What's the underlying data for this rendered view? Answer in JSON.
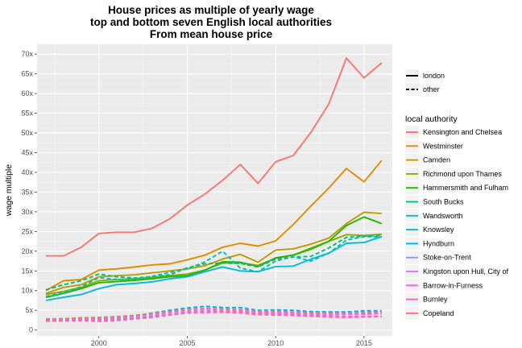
{
  "chart_data": {
    "type": "line",
    "title": [
      "House prices as multiple of yearly wage",
      "top and bottom seven English local authorities",
      "From mean house price"
    ],
    "xlabel": "",
    "ylabel": "wage multiple",
    "xlim": [
      1996.5,
      2016.6
    ],
    "ylim": [
      -1.5,
      72.5
    ],
    "x_ticks": [
      2000,
      2005,
      2010,
      2015
    ],
    "x_tick_labels": [
      "2000",
      "2005",
      "2010",
      "2015"
    ],
    "y_ticks": [
      0,
      5,
      10,
      15,
      20,
      25,
      30,
      35,
      40,
      45,
      50,
      55,
      60,
      65,
      70
    ],
    "y_tick_labels": [
      "0",
      "5x",
      "10x",
      "15x",
      "20x",
      "25x",
      "30x",
      "35x",
      "40x",
      "45x",
      "50x",
      "55x",
      "60x",
      "65x",
      "70x"
    ],
    "grid": true,
    "background": "#ebebeb",
    "legend_placement": "right",
    "linetype_legend": {
      "title": "",
      "items": [
        {
          "label": "london",
          "dash": "solid"
        },
        {
          "label": "other",
          "dash": "dashed"
        }
      ]
    },
    "color_legend_title": "local authority",
    "x": [
      1997,
      1998,
      1999,
      2000,
      2001,
      2002,
      2003,
      2004,
      2005,
      2006,
      2007,
      2008,
      2009,
      2010,
      2011,
      2012,
      2013,
      2014,
      2015,
      2016
    ],
    "series": [
      {
        "name": "Kensington and Chelsea",
        "color": "#F8766D",
        "dash": "solid",
        "values": [
          18.8,
          18.8,
          21.0,
          24.5,
          24.8,
          24.8,
          25.8,
          28.2,
          31.7,
          34.5,
          38.0,
          42.0,
          37.2,
          42.7,
          44.3,
          50.2,
          57.3,
          69.0,
          64.0,
          67.8
        ]
      },
      {
        "name": "Westminster",
        "color": "#E18A00",
        "dash": "solid",
        "values": [
          10.0,
          12.5,
          12.8,
          15.2,
          15.5,
          16.0,
          16.5,
          16.8,
          17.8,
          19.0,
          21.0,
          22.0,
          21.3,
          22.6,
          26.8,
          31.5,
          36.0,
          41.0,
          37.6,
          43.0
        ]
      },
      {
        "name": "Camden",
        "color": "#BE9C00",
        "dash": "solid",
        "values": [
          9.3,
          10.8,
          11.5,
          13.5,
          13.8,
          14.0,
          14.5,
          15.0,
          15.5,
          16.3,
          18.0,
          19.2,
          17.2,
          20.3,
          20.6,
          21.8,
          23.3,
          27.0,
          29.9,
          29.6
        ]
      },
      {
        "name": "Richmond upon Thames",
        "color": "#8CAB00",
        "dash": "solid",
        "values": [
          9.0,
          9.8,
          10.8,
          12.5,
          12.8,
          13.0,
          13.3,
          13.8,
          14.2,
          15.2,
          17.0,
          17.0,
          16.4,
          18.2,
          19.0,
          20.8,
          22.5,
          24.2,
          24.0,
          24.3
        ]
      },
      {
        "name": "Hammersmith and Fulham",
        "color": "#24B700",
        "dash": "solid",
        "values": [
          8.3,
          9.3,
          10.5,
          12.0,
          12.3,
          12.6,
          13.0,
          13.5,
          13.8,
          15.2,
          17.3,
          17.2,
          16.1,
          18.3,
          19.0,
          20.5,
          22.5,
          26.5,
          28.7,
          27.0
        ]
      },
      {
        "name": "South Bucks",
        "color": "#00BE70",
        "dash": "dashed",
        "values": [
          10.2,
          11.5,
          12.5,
          14.2,
          13.5,
          13.2,
          13.5,
          14.0,
          15.8,
          16.8,
          17.0,
          16.9,
          16.0,
          18.0,
          18.5,
          18.7,
          20.8,
          23.5,
          23.8,
          24.0
        ]
      },
      {
        "name": "Wandsworth",
        "color": "#00C1AB",
        "dash": "dashed",
        "values": [
          8.5,
          9.5,
          11.0,
          13.3,
          12.8,
          13.0,
          13.6,
          14.6,
          15.5,
          17.3,
          20.0,
          15.7,
          14.8,
          17.5,
          18.6,
          17.5,
          19.5,
          22.8,
          23.7,
          23.6
        ]
      },
      {
        "name": "Knowsley",
        "color": "#00BBDA",
        "dash": "solid",
        "values": [
          7.5,
          8.3,
          9.0,
          10.5,
          11.5,
          11.8,
          12.2,
          13.0,
          13.5,
          14.8,
          16.0,
          15.0,
          14.8,
          16.1,
          16.2,
          18.0,
          19.5,
          22.0,
          22.2,
          23.7
        ]
      },
      {
        "name": "Hyndburn",
        "color": "#00ACFC",
        "dash": "dashed",
        "values": [
          2.7,
          2.8,
          3.0,
          3.0,
          3.2,
          3.6,
          4.3,
          5.0,
          5.6,
          6.0,
          5.7,
          5.7,
          5.0,
          5.1,
          5.0,
          4.7,
          4.6,
          4.6,
          4.9,
          4.9
        ]
      },
      {
        "name": "Stoke-on-Trent",
        "color": "#8B93FF",
        "dash": "dashed",
        "values": [
          2.6,
          2.7,
          2.8,
          2.9,
          3.1,
          3.5,
          4.0,
          4.6,
          5.1,
          5.4,
          5.3,
          5.2,
          4.8,
          4.8,
          4.6,
          4.4,
          4.3,
          4.3,
          4.5,
          4.6
        ]
      },
      {
        "name": "Kingston upon Hull, City of",
        "color": "#D575FE",
        "dash": "dashed",
        "values": [
          2.4,
          2.5,
          2.6,
          2.6,
          2.8,
          3.1,
          3.6,
          4.3,
          4.8,
          5.0,
          5.0,
          4.8,
          4.4,
          4.4,
          4.2,
          4.0,
          3.9,
          3.9,
          4.0,
          4.1
        ]
      },
      {
        "name": "Barrow-in-Furness",
        "color": "#F962DD",
        "dash": "dashed",
        "values": [
          2.3,
          2.4,
          2.5,
          2.5,
          2.6,
          2.9,
          3.3,
          3.9,
          4.4,
          4.7,
          4.8,
          4.6,
          4.2,
          4.1,
          3.9,
          3.7,
          3.5,
          3.4,
          3.4,
          3.5
        ]
      },
      {
        "name": "Burnley",
        "color": "#FF65AC",
        "dash": "dashed",
        "values": [
          2.3,
          2.3,
          2.4,
          2.2,
          2.4,
          2.8,
          3.2,
          3.8,
          4.3,
          4.4,
          4.5,
          4.3,
          3.9,
          3.8,
          3.7,
          3.5,
          3.3,
          3.2,
          3.3,
          3.4
        ]
      },
      {
        "name": "Copeland",
        "color": "#F8766D",
        "dash": "dashed",
        "values": [
          2.8,
          2.9,
          3.1,
          3.2,
          3.4,
          3.7,
          4.2,
          4.7,
          5.2,
          5.5,
          5.3,
          5.1,
          4.7,
          4.7,
          4.5,
          4.3,
          4.2,
          4.1,
          4.2,
          4.3
        ]
      }
    ]
  }
}
